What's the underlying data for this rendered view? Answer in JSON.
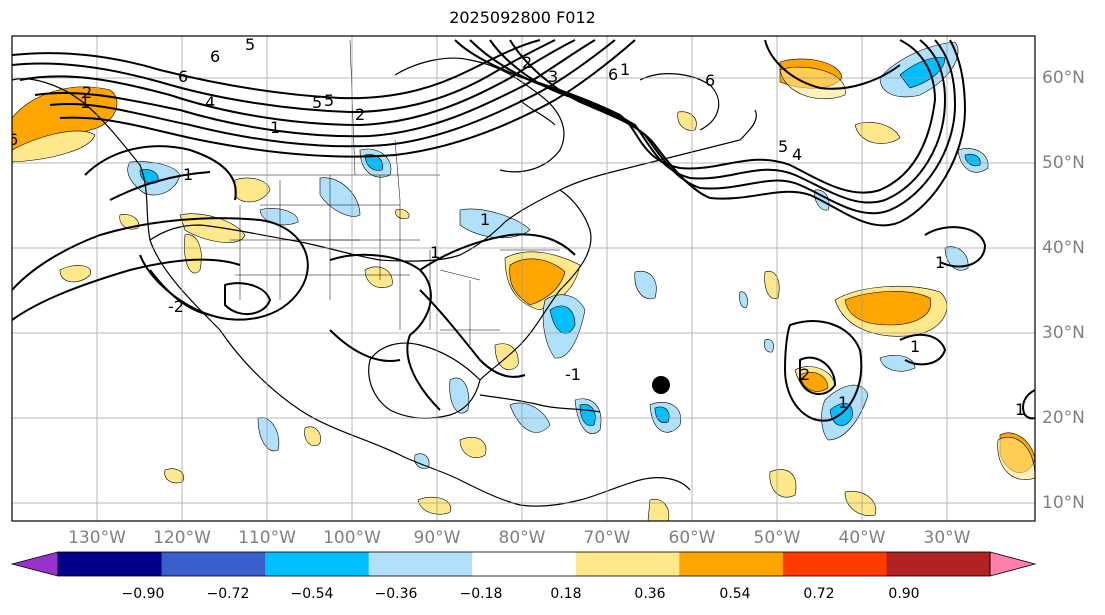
{
  "title": "2025092800 F012",
  "lon_labels": [
    "130°W",
    "120°W",
    "110°W",
    "100°W",
    "90°W",
    "80°W",
    "70°W",
    "60°W",
    "50°W",
    "40°W",
    "30°W"
  ],
  "lat_labels": [
    "60°N",
    "50°N",
    "40°N",
    "30°N",
    "20°N",
    "10°N"
  ],
  "colorbar": {
    "ticks": [
      "−0.90",
      "−0.72",
      "−0.54",
      "−0.36",
      "−0.18",
      "0.18",
      "0.36",
      "0.54",
      "0.72",
      "0.90"
    ],
    "colors": [
      "#9932cc",
      "#00008b",
      "#3a5fcd",
      "#00bfff",
      "#b0e0fa",
      "#ffffff",
      "#ffe88a",
      "#ffa500",
      "#ff3c00",
      "#b22222",
      "#ff7fa8"
    ]
  },
  "contour_labels": [
    "6",
    "5",
    "6",
    "5",
    "4",
    "1",
    "2",
    "1",
    "2",
    "6",
    "5",
    "4",
    "6",
    "6",
    "5",
    "3",
    "2",
    "1",
    "1",
    "1",
    "1",
    "1",
    "-1",
    "-2",
    "2",
    "1",
    "1",
    "1"
  ],
  "marker": "storm-center-dot"
}
